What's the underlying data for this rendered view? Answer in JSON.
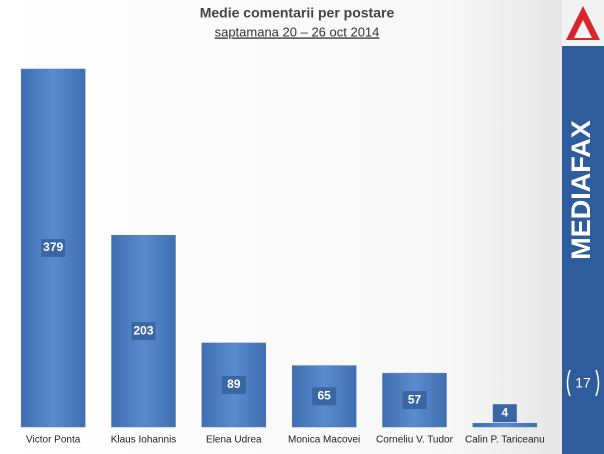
{
  "chart_data": {
    "type": "bar",
    "title": "Medie comentarii per postare",
    "subtitle": "saptamana 20 – 26 oct 2014",
    "categories": [
      "Victor Ponta",
      "Klaus Iohannis",
      "Elena Udrea",
      "Monica Macovei",
      "Corneliu V. Tudor",
      "Calin P. Tariceanu"
    ],
    "values": [
      379,
      203,
      89,
      65,
      57,
      4
    ],
    "color": "#4a7cbf"
  },
  "branding": {
    "name": "MEDIAFAX",
    "page": "17"
  }
}
